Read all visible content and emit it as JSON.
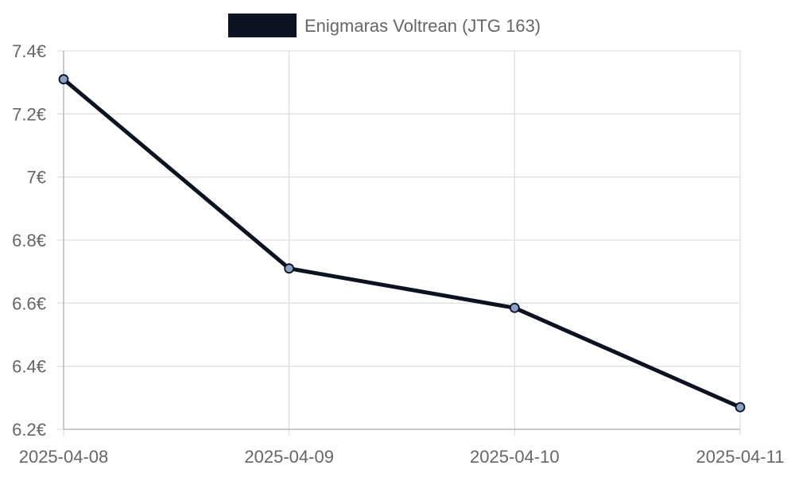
{
  "chart_data": {
    "type": "line",
    "title": "",
    "xlabel": "",
    "ylabel": "",
    "x": [
      "2025-04-08",
      "2025-04-09",
      "2025-04-10",
      "2025-04-11"
    ],
    "series": [
      {
        "name": "Enigmaras Voltrean (JTG 163)",
        "values": [
          7.31,
          6.71,
          6.585,
          6.27
        ],
        "color": "#0b1220",
        "point_color": "#8aa0c4"
      }
    ],
    "ylim": [
      6.2,
      7.4
    ],
    "yticks": [
      {
        "value": 6.2,
        "label": "6.2€"
      },
      {
        "value": 6.4,
        "label": "6.4€"
      },
      {
        "value": 6.6,
        "label": "6.6€"
      },
      {
        "value": 6.8,
        "label": "6.8€"
      },
      {
        "value": 7.0,
        "label": "7€"
      },
      {
        "value": 7.2,
        "label": "7.2€"
      },
      {
        "value": 7.4,
        "label": "7.4€"
      }
    ],
    "legend": {
      "position": "top-center"
    },
    "grid": true,
    "grid_color": "#e0e0e0",
    "axis_color": "#bbbbbb"
  }
}
